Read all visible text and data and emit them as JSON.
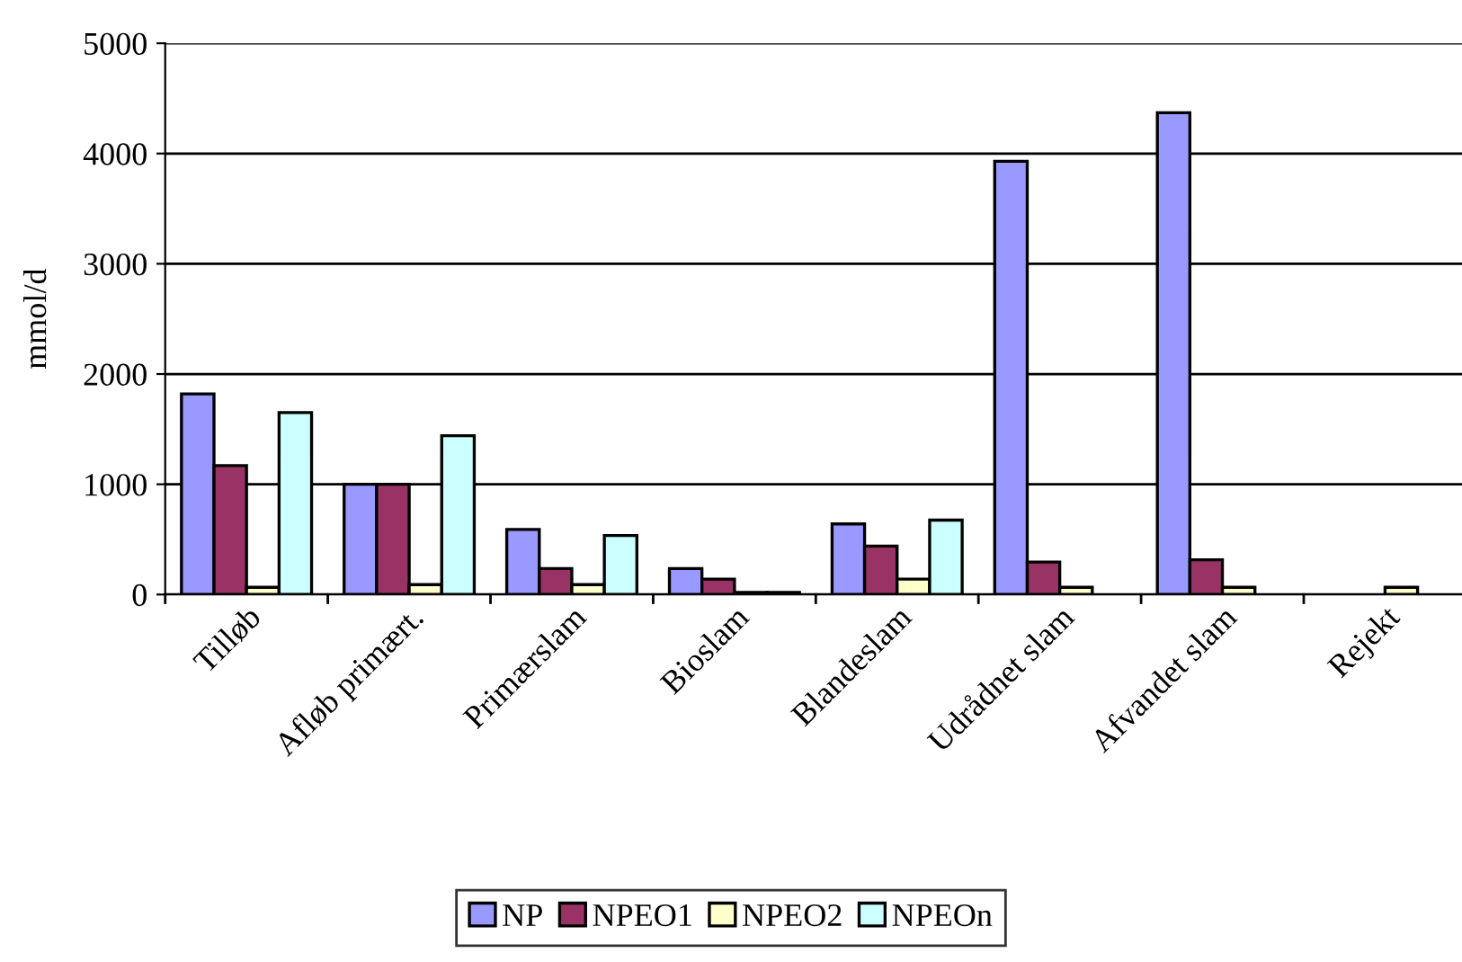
{
  "chart_data": {
    "type": "bar",
    "ylabel": "mmol/d",
    "categories": [
      "Tilløb",
      "Afløb primært.",
      "Primærslam",
      "Bioslam",
      "Blandeslam",
      "Udrådnet slam",
      "Afvandet slam",
      "Rejekt"
    ],
    "series": [
      {
        "name": "NP",
        "color": "#9999ff",
        "values": [
          1820,
          1000,
          590,
          235,
          640,
          3930,
          4370,
          null
        ]
      },
      {
        "name": "NPEO1",
        "color": "#993366",
        "values": [
          1170,
          1000,
          235,
          140,
          440,
          295,
          315,
          null
        ]
      },
      {
        "name": "NPEO2",
        "color": "#ffffcc",
        "values": [
          65,
          90,
          90,
          20,
          140,
          65,
          65,
          65
        ]
      },
      {
        "name": "NPEOn",
        "color": "#ccffff",
        "values": [
          1650,
          1440,
          535,
          20,
          675,
          null,
          null,
          null
        ]
      }
    ],
    "ylim": [
      0,
      5000
    ],
    "yticks": [
      0,
      1000,
      2000,
      3000,
      4000,
      5000
    ],
    "grid": "y",
    "legend": "bottom"
  }
}
